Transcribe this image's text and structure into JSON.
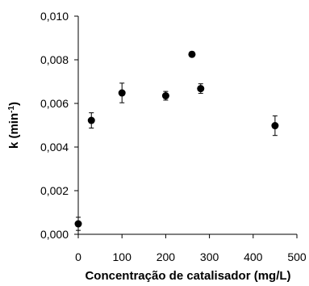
{
  "chart_data": {
    "type": "scatter",
    "title": "",
    "xlabel": "Concentração de catalisador (mg/L)",
    "ylabel_main": "k (min",
    "ylabel_sup": "-1",
    "ylabel_end": ")",
    "xlim": [
      0,
      500
    ],
    "ylim": [
      0,
      0.01
    ],
    "x_ticks": [
      0,
      100,
      200,
      300,
      400,
      500
    ],
    "x_tick_labels": [
      "0",
      "100",
      "200",
      "300",
      "400",
      "500"
    ],
    "y_ticks": [
      0,
      0.002,
      0.004,
      0.006,
      0.008,
      0.01
    ],
    "y_tick_labels": [
      "0,000",
      "0,002",
      "0,004",
      "0,006",
      "0,008",
      "0,010"
    ],
    "grid": false,
    "legend": "none",
    "marker_color": "#000000",
    "points": [
      {
        "x": 0,
        "y": 0.00048,
        "err": 0.0003
      },
      {
        "x": 30,
        "y": 0.00522,
        "err": 0.00035
      },
      {
        "x": 100,
        "y": 0.00648,
        "err": 0.00045
      },
      {
        "x": 200,
        "y": 0.00635,
        "err": 0.0002
      },
      {
        "x": 260,
        "y": 0.00825,
        "err": 0.00012
      },
      {
        "x": 280,
        "y": 0.00668,
        "err": 0.00022
      },
      {
        "x": 450,
        "y": 0.00498,
        "err": 0.00045
      }
    ]
  }
}
